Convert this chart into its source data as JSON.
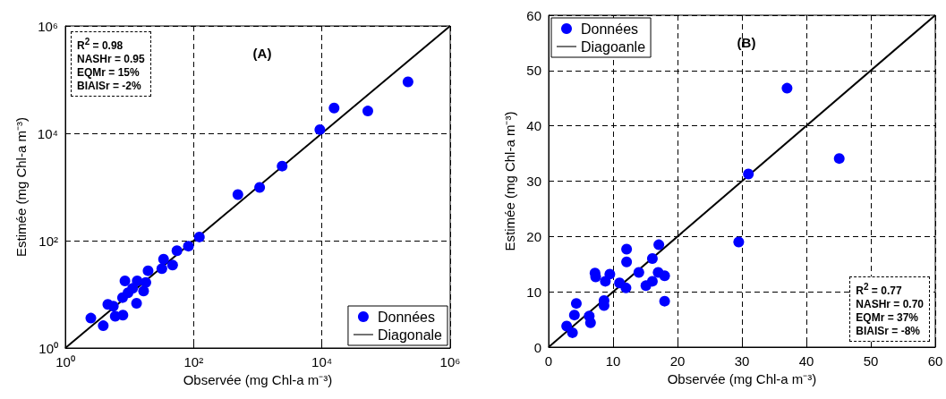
{
  "chart_data": [
    {
      "type": "scatter",
      "title": "(A)",
      "xlabel": "Observée (mg Chl-a m⁻³)",
      "ylabel": "Estimée (mg Chl-a m⁻³)",
      "log": "xy",
      "xlim": [
        1,
        1000000
      ],
      "ylim": [
        1,
        1000000
      ],
      "xticks": [
        {
          "value": 1,
          "label": "10⁰"
        },
        {
          "value": 100,
          "label": "10²"
        },
        {
          "value": 10000,
          "label": "10⁴"
        },
        {
          "value": 1000000,
          "label": "10⁶"
        }
      ],
      "yticks": [
        {
          "value": 1,
          "label": "10⁰"
        },
        {
          "value": 100,
          "label": "10²"
        },
        {
          "value": 10000,
          "label": "10⁴"
        },
        {
          "value": 1000000,
          "label": "10⁶"
        }
      ],
      "grid": true,
      "legend": "bottom right",
      "annotations": [
        "R$^{2}$ = 0.98",
        "NASHr = 0.95",
        "EQMr = 15%",
        "BIAISr = -2%"
      ],
      "series": [
        {
          "name": "Données",
          "marker": "circle",
          "color": "#0000ff",
          "x": [
            220000,
            15500,
            52000,
            9300,
            2400,
            1070,
            490,
            123,
            83,
            55,
            34,
            47,
            32,
            19.5,
            18,
            13.2,
            8.5,
            16.6,
            11.2,
            7.8,
            12.9,
            4.6,
            5.6,
            6,
            7.9,
            2.5,
            3.9,
            9.5
          ],
          "values": [
            91000,
            29500,
            26000,
            11700,
            2450,
            980,
            720,
            117,
            79,
            65,
            45,
            35,
            30,
            27.5,
            16.6,
            17.8,
            17.8,
            11.5,
            12.9,
            8.7,
            6.8,
            6.5,
            6,
            3.9,
            4.1,
            3.6,
            2.6,
            10.7
          ]
        },
        {
          "name": "Diagonale",
          "type": "line",
          "marker": "none",
          "line_style": "solid",
          "color": "#000000",
          "x": [
            1,
            1000000
          ],
          "values": [
            1,
            1000000
          ]
        }
      ]
    },
    {
      "type": "scatter",
      "title": "(B)",
      "xlabel": "Observée (mg Chl-a m⁻³)",
      "ylabel": "Estimée (mg Chl-a m⁻³)",
      "xlim": [
        0,
        60
      ],
      "ylim": [
        0,
        60
      ],
      "xticks": [
        0,
        10,
        20,
        30,
        40,
        50,
        60
      ],
      "yticks": [
        0,
        10,
        20,
        30,
        40,
        50,
        60
      ],
      "grid": true,
      "legend": "top left",
      "annotations": [
        "R$^{2}$ = 0.77",
        "NASHr = 0.70",
        "EQMr = 37%",
        "BIAISr = -8%"
      ],
      "series": [
        {
          "name": "Données",
          "marker": "circle",
          "color": "#0000ff",
          "x": [
            37,
            45.1,
            31,
            29.5,
            17.1,
            12.1,
            12.1,
            16.1,
            14,
            17,
            18,
            16.1,
            15.1,
            11,
            12,
            7.2,
            9.5,
            8.8,
            18,
            8.6,
            8.6,
            4.3,
            4,
            6.3,
            6.5,
            2.8,
            3.7,
            7.3
          ],
          "values": [
            46.8,
            34.1,
            31.3,
            19,
            18.5,
            17.7,
            15.4,
            16,
            13.5,
            13.5,
            12.9,
            11.9,
            11.1,
            11.6,
            10.7,
            13.4,
            13.2,
            11.9,
            8.3,
            8.4,
            7.5,
            7.9,
            5.8,
            5.6,
            4.4,
            3.8,
            2.6,
            12.7
          ]
        },
        {
          "name": "Diagoanle",
          "type": "line",
          "marker": "none",
          "line_style": "solid",
          "color": "#000000",
          "x": [
            0,
            60
          ],
          "values": [
            0,
            60
          ]
        }
      ]
    }
  ]
}
